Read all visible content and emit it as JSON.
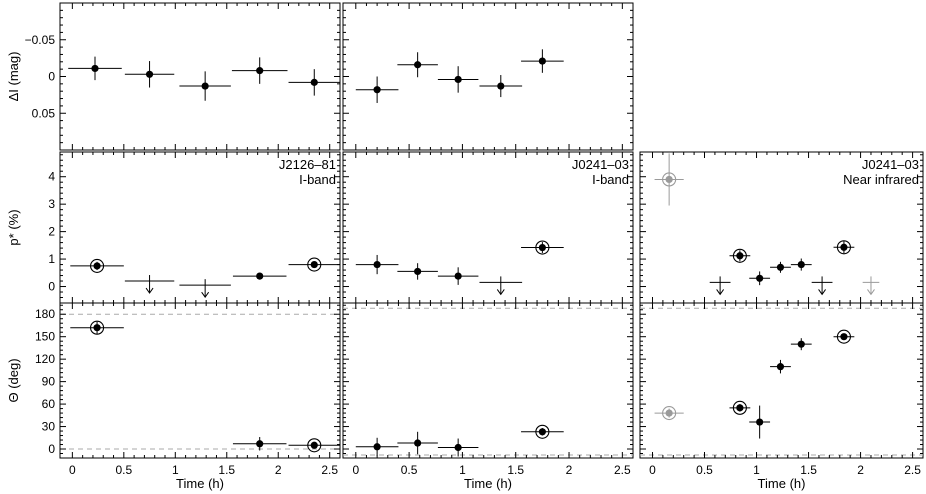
{
  "chart_data": [
    {
      "id": "dI_J2126",
      "type": "scatter",
      "ylabel": "ΔI (mag)",
      "ylim": [
        0.1,
        -0.1
      ],
      "y_reversed": true,
      "yticks": [
        -0.05,
        0,
        0.05
      ],
      "ytick_labels": [
        "−0.05",
        "0",
        "0.05"
      ],
      "points": [
        {
          "x": 0.22,
          "y": -0.011,
          "xerr": 0.26,
          "yerr": 0.016
        },
        {
          "x": 0.75,
          "y": -0.003,
          "xerr": 0.24,
          "yerr": 0.018
        },
        {
          "x": 1.29,
          "y": 0.013,
          "xerr": 0.25,
          "yerr": 0.02
        },
        {
          "x": 1.82,
          "y": -0.008,
          "xerr": 0.27,
          "yerr": 0.018
        },
        {
          "x": 2.35,
          "y": 0.008,
          "xerr": 0.25,
          "yerr": 0.018
        }
      ]
    },
    {
      "id": "dI_J0241",
      "type": "scatter",
      "ylim": [
        0.1,
        -0.1
      ],
      "y_reversed": true,
      "yticks": [
        -0.05,
        0,
        0.05
      ],
      "points": [
        {
          "x": 0.2,
          "y": 0.018,
          "xerr": 0.2,
          "yerr": 0.018
        },
        {
          "x": 0.58,
          "y": -0.016,
          "xerr": 0.19,
          "yerr": 0.017
        },
        {
          "x": 0.96,
          "y": 0.004,
          "xerr": 0.19,
          "yerr": 0.018
        },
        {
          "x": 1.36,
          "y": 0.013,
          "xerr": 0.2,
          "yerr": 0.015
        },
        {
          "x": 1.75,
          "y": -0.021,
          "xerr": 0.2,
          "yerr": 0.016
        }
      ]
    },
    {
      "id": "p_J2126",
      "type": "scatter",
      "ylabel": "p* (%)",
      "ylim": [
        -0.6,
        4.9
      ],
      "yticks": [
        0,
        1,
        2,
        3,
        4
      ],
      "ytick_labels": [
        "0",
        "1",
        "2",
        "3",
        "4"
      ],
      "annotation": [
        "J2126–81",
        "I-band"
      ],
      "points": [
        {
          "x": 0.24,
          "y": 0.75,
          "xerr": 0.26,
          "yerr": 0.15,
          "circled": true
        },
        {
          "x": 0.75,
          "y": 0.2,
          "xerr": 0.24,
          "upper_limit": true
        },
        {
          "x": 1.29,
          "y": 0.05,
          "xerr": 0.25,
          "upper_limit": true
        },
        {
          "x": 1.82,
          "y": 0.38,
          "xerr": 0.26,
          "yerr": 0.05
        },
        {
          "x": 2.35,
          "y": 0.8,
          "xerr": 0.25,
          "yerr": 0.1,
          "circled": true
        }
      ]
    },
    {
      "id": "p_J0241_I",
      "type": "scatter",
      "ylim": [
        -0.6,
        4.9
      ],
      "yticks": [
        0,
        1,
        2,
        3,
        4
      ],
      "annotation": [
        "J0241–03",
        "I-band"
      ],
      "points": [
        {
          "x": 0.2,
          "y": 0.8,
          "xerr": 0.2,
          "yerr": 0.35
        },
        {
          "x": 0.58,
          "y": 0.55,
          "xerr": 0.19,
          "yerr": 0.3
        },
        {
          "x": 0.96,
          "y": 0.38,
          "xerr": 0.19,
          "yerr": 0.32
        },
        {
          "x": 1.36,
          "y": 0.15,
          "xerr": 0.2,
          "upper_limit": true
        },
        {
          "x": 1.75,
          "y": 1.42,
          "xerr": 0.2,
          "yerr": 0.2,
          "circled": true
        }
      ]
    },
    {
      "id": "p_J0241_NIR",
      "type": "scatter",
      "ylim": [
        -0.6,
        4.9
      ],
      "yticks": [
        0,
        1,
        2,
        3,
        4
      ],
      "annotation": [
        "J0241–03",
        "Near infrared"
      ],
      "points": [
        {
          "x": 0.16,
          "y": 3.9,
          "xerr": 0.14,
          "yerr": 0.95,
          "circled": true,
          "gray": true
        },
        {
          "x": 0.65,
          "y": 0.15,
          "xerr": 0.1,
          "upper_limit": true
        },
        {
          "x": 0.84,
          "y": 1.12,
          "xerr": 0.1,
          "yerr": 0.2,
          "circled": true
        },
        {
          "x": 1.03,
          "y": 0.3,
          "xerr": 0.1,
          "yerr": 0.25
        },
        {
          "x": 1.23,
          "y": 0.7,
          "xerr": 0.1,
          "yerr": 0.2
        },
        {
          "x": 1.43,
          "y": 0.8,
          "xerr": 0.1,
          "yerr": 0.22
        },
        {
          "x": 1.63,
          "y": 0.15,
          "xerr": 0.1,
          "upper_limit": true
        },
        {
          "x": 1.84,
          "y": 1.43,
          "xerr": 0.1,
          "yerr": 0.22,
          "circled": true
        },
        {
          "x": 2.1,
          "y": 0.15,
          "xerr": 0.08,
          "upper_limit": true,
          "gray": true
        }
      ]
    },
    {
      "id": "th_J2126",
      "type": "scatter",
      "ylabel": "Θ (deg)",
      "xlabel": "Time (h)",
      "ylim": [
        -12,
        195
      ],
      "yticks": [
        0,
        30,
        60,
        90,
        120,
        150,
        180
      ],
      "ytick_labels": [
        "0",
        "30",
        "60",
        "90",
        "120",
        "150",
        "180"
      ],
      "xticks": [
        0,
        0.5,
        1,
        1.5,
        2,
        2.5
      ],
      "xtick_labels": [
        "0",
        "0.5",
        "1",
        "1.5",
        "2",
        "2.5"
      ],
      "hlines": [
        0,
        180
      ],
      "points": [
        {
          "x": 0.24,
          "y": 162,
          "xerr": 0.26,
          "yerr": 8,
          "circled": true
        },
        {
          "x": 1.82,
          "y": 7,
          "xerr": 0.26,
          "yerr": 9
        },
        {
          "x": 2.35,
          "y": 5,
          "xerr": 0.25,
          "yerr": 3,
          "circled": true
        }
      ]
    },
    {
      "id": "th_J0241_I",
      "type": "scatter",
      "xlabel": "Time (h)",
      "ylim": [
        -12,
        195
      ],
      "yticks": [
        0,
        30,
        60,
        90,
        120,
        150,
        180
      ],
      "xticks": [
        0,
        0.5,
        1,
        1.5,
        2,
        2.5
      ],
      "xtick_labels": [
        "0",
        "0.5",
        "1",
        "1.5",
        "2",
        "2.5"
      ],
      "hlines": [
        -8,
        188
      ],
      "points": [
        {
          "x": 0.2,
          "y": 3,
          "xerr": 0.2,
          "yerr": 12
        },
        {
          "x": 0.58,
          "y": 8,
          "xerr": 0.19,
          "yerr": 15
        },
        {
          "x": 0.96,
          "y": 2,
          "xerr": 0.19,
          "yerr": 12
        },
        {
          "x": 1.75,
          "y": 23,
          "xerr": 0.2,
          "yerr": 5,
          "circled": true
        }
      ]
    },
    {
      "id": "th_J0241_NIR",
      "type": "scatter",
      "xlabel": "Time (h)",
      "ylim": [
        -12,
        195
      ],
      "yticks": [
        0,
        30,
        60,
        90,
        120,
        150,
        180
      ],
      "xticks": [
        0,
        0.5,
        1,
        1.5,
        2,
        2.5
      ],
      "xtick_labels": [
        "0",
        "0.5",
        "1",
        "1.5",
        "2",
        "2.5"
      ],
      "hlines": [
        -8,
        188
      ],
      "points": [
        {
          "x": 0.16,
          "y": 48,
          "xerr": 0.14,
          "yerr": 6,
          "circled": true,
          "gray": true
        },
        {
          "x": 0.84,
          "y": 55,
          "xerr": 0.1,
          "yerr": 5,
          "circled": true
        },
        {
          "x": 1.03,
          "y": 36,
          "xerr": 0.1,
          "yerr": 22
        },
        {
          "x": 1.23,
          "y": 110,
          "xerr": 0.1,
          "yerr": 9
        },
        {
          "x": 1.43,
          "y": 140,
          "xerr": 0.1,
          "yerr": 8
        },
        {
          "x": 1.84,
          "y": 150,
          "xerr": 0.1,
          "yerr": 4,
          "circled": true
        }
      ]
    }
  ]
}
